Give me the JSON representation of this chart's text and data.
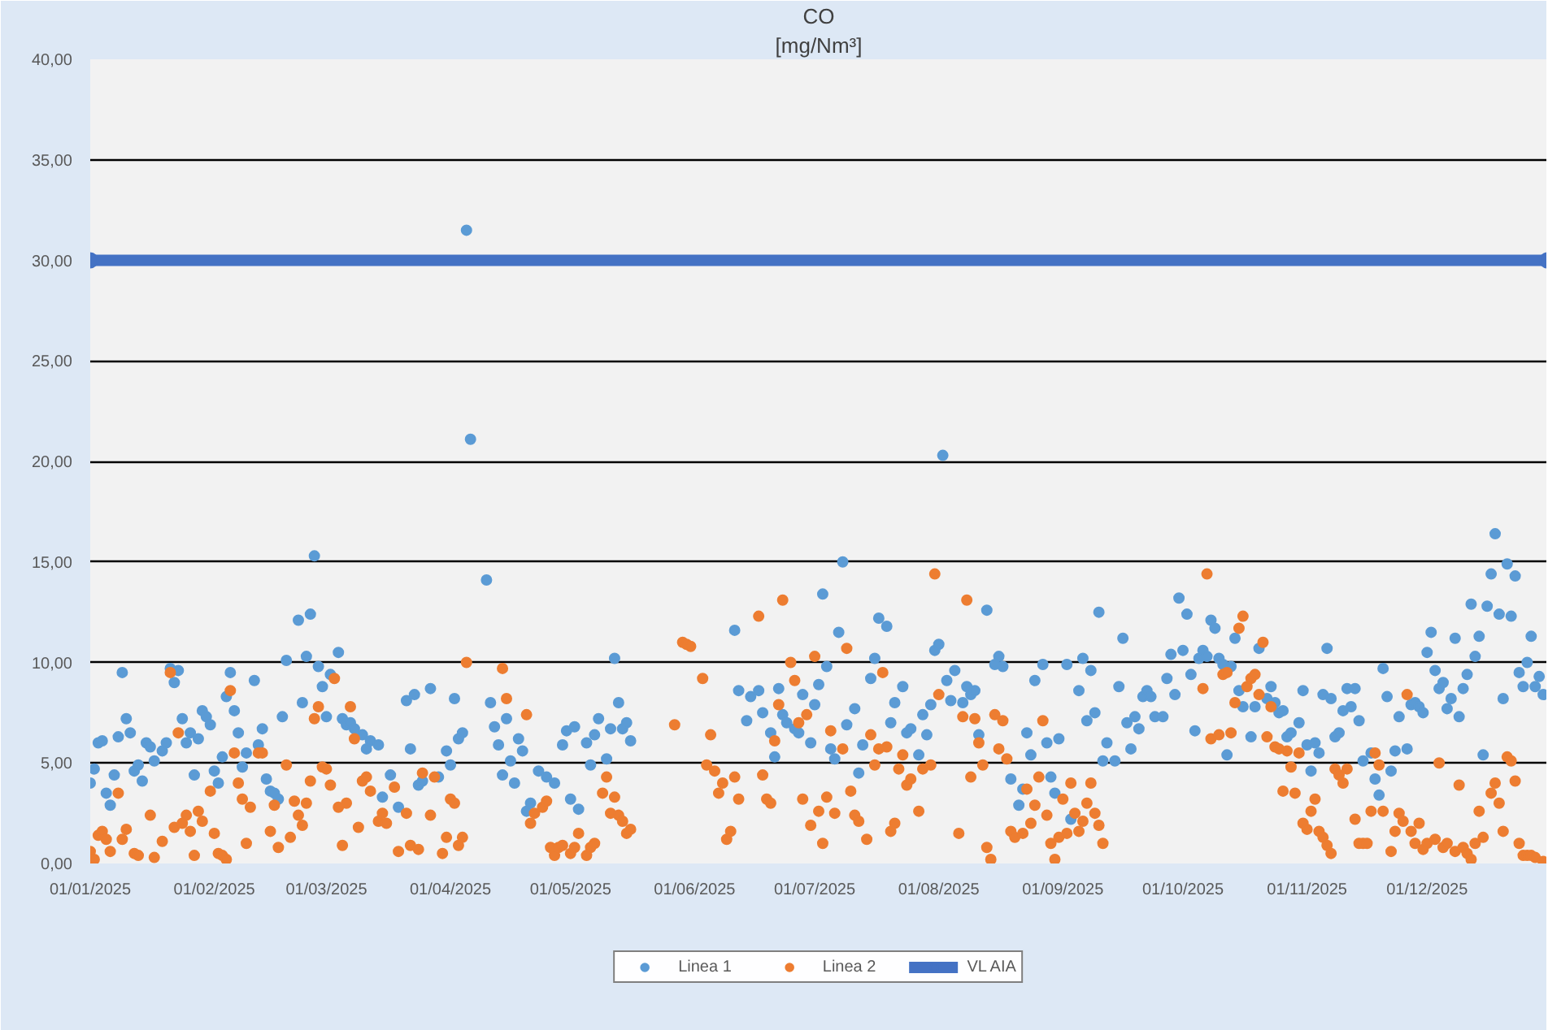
{
  "chart_data": {
    "type": "scatter",
    "title": "CO",
    "subtitle": "[mg/Nm³]",
    "xlim": [
      "2025-01-01",
      "2025-12-31"
    ],
    "xticks": [
      {
        "value": "2025-01-01",
        "label": "01/01/2025"
      },
      {
        "value": "2025-02-01",
        "label": "01/02/2025"
      },
      {
        "value": "2025-03-01",
        "label": "01/03/2025"
      },
      {
        "value": "2025-04-01",
        "label": "01/04/2025"
      },
      {
        "value": "2025-05-01",
        "label": "01/05/2025"
      },
      {
        "value": "2025-06-01",
        "label": "01/06/2025"
      },
      {
        "value": "2025-07-01",
        "label": "01/07/2025"
      },
      {
        "value": "2025-08-01",
        "label": "01/08/2025"
      },
      {
        "value": "2025-09-01",
        "label": "01/09/2025"
      },
      {
        "value": "2025-10-01",
        "label": "01/10/2025"
      },
      {
        "value": "2025-11-01",
        "label": "01/11/2025"
      },
      {
        "value": "2025-12-01",
        "label": "01/12/2025"
      }
    ],
    "ylim": [
      0,
      40
    ],
    "yticks": [
      {
        "value": 0,
        "label": "0,00"
      },
      {
        "value": 5,
        "label": "5,00"
      },
      {
        "value": 10,
        "label": "10,00"
      },
      {
        "value": 15,
        "label": "15,00"
      },
      {
        "value": 20,
        "label": "20,00"
      },
      {
        "value": 25,
        "label": "25,00"
      },
      {
        "value": 30,
        "label": "30,00"
      },
      {
        "value": 35,
        "label": "35,00"
      },
      {
        "value": 40,
        "label": "40,00"
      }
    ],
    "grid": "y",
    "legend": "bottom",
    "marker": "circle",
    "series": [
      {
        "name": "Linea 1",
        "color": "#5b9bd5",
        "x": [
          "2025-01-01",
          "2025-01-02",
          "2025-01-03",
          "2025-01-04",
          "2025-01-05",
          "2025-01-06",
          "2025-01-07",
          "2025-01-08",
          "2025-01-09",
          "2025-01-10",
          "2025-01-11",
          "2025-01-12",
          "2025-01-13",
          "2025-01-14",
          "2025-01-15",
          "2025-01-16",
          "2025-01-17",
          "2025-01-19",
          "2025-01-20",
          "2025-01-21",
          "2025-01-22",
          "2025-01-23",
          "2025-01-24",
          "2025-01-25",
          "2025-01-26",
          "2025-01-27",
          "2025-01-28",
          "2025-01-29",
          "2025-01-30",
          "2025-01-31",
          "2025-02-01",
          "2025-02-02",
          "2025-02-03",
          "2025-02-04",
          "2025-02-05",
          "2025-02-06",
          "2025-02-07",
          "2025-02-08",
          "2025-02-09",
          "2025-02-11",
          "2025-02-12",
          "2025-02-13",
          "2025-02-14",
          "2025-02-15",
          "2025-02-16",
          "2025-02-17",
          "2025-02-18",
          "2025-02-19",
          "2025-02-22",
          "2025-02-23",
          "2025-02-24",
          "2025-02-25",
          "2025-02-26",
          "2025-02-27",
          "2025-02-28",
          "2025-03-01",
          "2025-03-02",
          "2025-03-04",
          "2025-03-05",
          "2025-03-06",
          "2025-03-07",
          "2025-03-08",
          "2025-03-10",
          "2025-03-11",
          "2025-03-12",
          "2025-03-14",
          "2025-03-15",
          "2025-03-17",
          "2025-03-19",
          "2025-03-21",
          "2025-03-22",
          "2025-03-23",
          "2025-03-24",
          "2025-03-25",
          "2025-03-27",
          "2025-03-29",
          "2025-03-31",
          "2025-04-01",
          "2025-04-02",
          "2025-04-03",
          "2025-04-04",
          "2025-04-05",
          "2025-04-06",
          "2025-04-10",
          "2025-04-11",
          "2025-04-12",
          "2025-04-13",
          "2025-04-14",
          "2025-04-15",
          "2025-04-16",
          "2025-04-17",
          "2025-04-18",
          "2025-04-19",
          "2025-04-20",
          "2025-04-21",
          "2025-04-23",
          "2025-04-25",
          "2025-04-27",
          "2025-04-29",
          "2025-04-30",
          "2025-05-01",
          "2025-05-02",
          "2025-05-03",
          "2025-05-05",
          "2025-05-06",
          "2025-05-07",
          "2025-05-08",
          "2025-05-10",
          "2025-05-11",
          "2025-05-12",
          "2025-05-13",
          "2025-05-14",
          "2025-05-15",
          "2025-05-16",
          "2025-06-11",
          "2025-06-12",
          "2025-06-14",
          "2025-06-15",
          "2025-06-17",
          "2025-06-18",
          "2025-06-20",
          "2025-06-21",
          "2025-06-22",
          "2025-06-23",
          "2025-06-24",
          "2025-06-26",
          "2025-06-27",
          "2025-06-28",
          "2025-06-30",
          "2025-07-01",
          "2025-07-02",
          "2025-07-03",
          "2025-07-04",
          "2025-07-05",
          "2025-07-06",
          "2025-07-07",
          "2025-07-08",
          "2025-07-09",
          "2025-07-11",
          "2025-07-12",
          "2025-07-13",
          "2025-07-15",
          "2025-07-16",
          "2025-07-17",
          "2025-07-19",
          "2025-07-20",
          "2025-07-21",
          "2025-07-23",
          "2025-07-24",
          "2025-07-25",
          "2025-07-27",
          "2025-07-28",
          "2025-07-29",
          "2025-07-30",
          "2025-07-31",
          "2025-08-01",
          "2025-08-02",
          "2025-08-03",
          "2025-08-04",
          "2025-08-05",
          "2025-08-07",
          "2025-08-08",
          "2025-08-09",
          "2025-08-10",
          "2025-08-11",
          "2025-08-13",
          "2025-08-15",
          "2025-08-16",
          "2025-08-17",
          "2025-08-19",
          "2025-08-21",
          "2025-08-22",
          "2025-08-23",
          "2025-08-24",
          "2025-08-25",
          "2025-08-27",
          "2025-08-28",
          "2025-08-29",
          "2025-08-30",
          "2025-08-31",
          "2025-09-02",
          "2025-09-03",
          "2025-09-05",
          "2025-09-06",
          "2025-09-07",
          "2025-09-08",
          "2025-09-09",
          "2025-09-10",
          "2025-09-11",
          "2025-09-12",
          "2025-09-14",
          "2025-09-15",
          "2025-09-16",
          "2025-09-17",
          "2025-09-18",
          "2025-09-19",
          "2025-09-20",
          "2025-09-21",
          "2025-09-22",
          "2025-09-23",
          "2025-09-24",
          "2025-09-26",
          "2025-09-27",
          "2025-09-28",
          "2025-09-29",
          "2025-09-30",
          "2025-10-01",
          "2025-10-02",
          "2025-10-03",
          "2025-10-04",
          "2025-10-05",
          "2025-10-06",
          "2025-10-07",
          "2025-10-08",
          "2025-10-09",
          "2025-10-10",
          "2025-10-11",
          "2025-10-12",
          "2025-10-13",
          "2025-10-14",
          "2025-10-15",
          "2025-10-16",
          "2025-10-18",
          "2025-10-19",
          "2025-10-20",
          "2025-10-22",
          "2025-10-23",
          "2025-10-24",
          "2025-10-25",
          "2025-10-26",
          "2025-10-27",
          "2025-10-28",
          "2025-10-30",
          "2025-10-31",
          "2025-11-01",
          "2025-11-02",
          "2025-11-03",
          "2025-11-04",
          "2025-11-05",
          "2025-11-06",
          "2025-11-07",
          "2025-11-08",
          "2025-11-09",
          "2025-11-10",
          "2025-11-11",
          "2025-11-12",
          "2025-11-13",
          "2025-11-14",
          "2025-11-15",
          "2025-11-17",
          "2025-11-18",
          "2025-11-19",
          "2025-11-20",
          "2025-11-21",
          "2025-11-22",
          "2025-11-23",
          "2025-11-24",
          "2025-11-26",
          "2025-11-27",
          "2025-11-28",
          "2025-11-29",
          "2025-11-30",
          "2025-12-01",
          "2025-12-02",
          "2025-12-03",
          "2025-12-04",
          "2025-12-05",
          "2025-12-06",
          "2025-12-07",
          "2025-12-08",
          "2025-12-09",
          "2025-12-10",
          "2025-12-11",
          "2025-12-12",
          "2025-12-13",
          "2025-12-14",
          "2025-12-15",
          "2025-12-16",
          "2025-12-17",
          "2025-12-18",
          "2025-12-19",
          "2025-12-20",
          "2025-12-21",
          "2025-12-22",
          "2025-12-23",
          "2025-12-24",
          "2025-12-25",
          "2025-12-26",
          "2025-12-27",
          "2025-12-28",
          "2025-12-29",
          "2025-12-30"
        ],
        "values": [
          4.0,
          4.7,
          6.0,
          6.1,
          3.5,
          2.9,
          4.4,
          6.3,
          9.5,
          7.2,
          6.5,
          4.6,
          4.9,
          4.1,
          6.0,
          5.8,
          5.1,
          5.6,
          6.0,
          9.7,
          9.0,
          9.6,
          7.2,
          6.0,
          6.5,
          4.4,
          6.2,
          7.6,
          7.3,
          6.9,
          4.6,
          4.0,
          5.3,
          8.3,
          9.5,
          7.6,
          6.5,
          4.8,
          5.5,
          9.1,
          5.9,
          6.7,
          4.2,
          3.6,
          3.5,
          3.2,
          7.3,
          10.1,
          12.1,
          8.0,
          10.3,
          12.4,
          15.3,
          9.8,
          8.8,
          7.3,
          9.4,
          10.5,
          7.2,
          6.9,
          7.0,
          6.7,
          6.4,
          5.7,
          6.1,
          5.9,
          3.3,
          4.4,
          2.8,
          8.1,
          5.7,
          8.4,
          3.9,
          4.1,
          8.7,
          4.3,
          5.6,
          4.9,
          8.2,
          6.2,
          6.5,
          31.5,
          21.1,
          14.1,
          8.0,
          6.8,
          5.9,
          4.4,
          7.2,
          5.1,
          4.0,
          6.2,
          5.6,
          2.6,
          3.0,
          4.6,
          4.3,
          4.0,
          5.9,
          6.6,
          3.2,
          6.8,
          2.7,
          6.0,
          4.9,
          6.4,
          7.2,
          5.2,
          6.7,
          10.2,
          8.0,
          6.7,
          7.0,
          6.1,
          11.6,
          8.6,
          7.1,
          8.3,
          8.6,
          7.5,
          6.5,
          5.3,
          8.7,
          7.4,
          7.0,
          6.7,
          6.5,
          8.4,
          6.0,
          7.9,
          8.9,
          13.4,
          9.8,
          5.7,
          5.2,
          11.5,
          15.0,
          6.9,
          7.7,
          4.5,
          5.9,
          9.2,
          10.2,
          12.2,
          11.8,
          7.0,
          8.0,
          8.8,
          6.5,
          6.7,
          5.4,
          7.4,
          6.4,
          7.9,
          10.6,
          10.9,
          20.3,
          9.1,
          8.1,
          9.6,
          8.0,
          8.8,
          8.4,
          8.6,
          6.4,
          12.6,
          9.9,
          10.3,
          9.8,
          4.2,
          2.9,
          3.7,
          6.5,
          5.4,
          9.1,
          9.9,
          6.0,
          4.3,
          3.5,
          6.2,
          9.9,
          2.2,
          8.6,
          10.2,
          7.1,
          9.6,
          7.5,
          12.5,
          5.1,
          6.0,
          5.1,
          8.8,
          11.2,
          7.0,
          5.7,
          7.3,
          6.7,
          8.3,
          8.6,
          8.3,
          7.3,
          7.3,
          9.2,
          10.4,
          8.4,
          13.2,
          10.6,
          12.4,
          9.4,
          6.6,
          10.2,
          10.6,
          10.3,
          12.1,
          11.7,
          10.2,
          9.9,
          5.4,
          9.8,
          11.2,
          8.6,
          7.8,
          6.3,
          7.8,
          10.7,
          8.2,
          8.8,
          8.0,
          7.5,
          7.6,
          6.3,
          6.5,
          7.0,
          8.6,
          5.9,
          4.6,
          6.0,
          5.5,
          8.4,
          10.7,
          8.2,
          6.3,
          6.5,
          7.6,
          8.7,
          7.8,
          8.7,
          7.1,
          5.1,
          5.5,
          4.2,
          3.4,
          9.7,
          8.3,
          4.6,
          5.6,
          7.3,
          5.7,
          7.9,
          8.0,
          7.8,
          7.5,
          10.5,
          11.5,
          9.6,
          8.7,
          9.0,
          7.7,
          8.2,
          11.2,
          7.3,
          8.7,
          9.4,
          12.9,
          10.3,
          11.3,
          5.4,
          12.8,
          14.4,
          16.4,
          12.4,
          8.2,
          14.9,
          12.3,
          14.3,
          9.5,
          8.8,
          10.0,
          11.3,
          8.8,
          9.3,
          8.4
        ]
      },
      {
        "name": "Linea 2",
        "color": "#ed7d31",
        "x": [
          "2025-01-01",
          "2025-01-02",
          "2025-01-03",
          "2025-01-04",
          "2025-01-05",
          "2025-01-06",
          "2025-01-08",
          "2025-01-09",
          "2025-01-10",
          "2025-01-12",
          "2025-01-13",
          "2025-01-16",
          "2025-01-17",
          "2025-01-19",
          "2025-01-21",
          "2025-01-22",
          "2025-01-23",
          "2025-01-24",
          "2025-01-25",
          "2025-01-26",
          "2025-01-27",
          "2025-01-28",
          "2025-01-29",
          "2025-01-31",
          "2025-02-01",
          "2025-02-02",
          "2025-02-03",
          "2025-02-04",
          "2025-02-05",
          "2025-02-06",
          "2025-02-07",
          "2025-02-08",
          "2025-02-09",
          "2025-02-10",
          "2025-02-12",
          "2025-02-13",
          "2025-02-15",
          "2025-02-16",
          "2025-02-17",
          "2025-02-19",
          "2025-02-20",
          "2025-02-21",
          "2025-02-22",
          "2025-02-23",
          "2025-02-24",
          "2025-02-25",
          "2025-02-26",
          "2025-02-27",
          "2025-02-28",
          "2025-03-01",
          "2025-03-02",
          "2025-03-03",
          "2025-03-04",
          "2025-03-05",
          "2025-03-06",
          "2025-03-07",
          "2025-03-08",
          "2025-03-09",
          "2025-03-10",
          "2025-03-11",
          "2025-03-12",
          "2025-03-14",
          "2025-03-15",
          "2025-03-16",
          "2025-03-18",
          "2025-03-19",
          "2025-03-21",
          "2025-03-22",
          "2025-03-24",
          "2025-03-25",
          "2025-03-27",
          "2025-03-28",
          "2025-03-30",
          "2025-03-31",
          "2025-04-01",
          "2025-04-02",
          "2025-04-03",
          "2025-04-04",
          "2025-04-05",
          "2025-04-14",
          "2025-04-15",
          "2025-04-20",
          "2025-04-21",
          "2025-04-22",
          "2025-04-24",
          "2025-04-25",
          "2025-04-26",
          "2025-04-27",
          "2025-04-28",
          "2025-04-29",
          "2025-05-01",
          "2025-05-02",
          "2025-05-03",
          "2025-05-05",
          "2025-05-06",
          "2025-05-07",
          "2025-05-09",
          "2025-05-10",
          "2025-05-11",
          "2025-05-12",
          "2025-05-13",
          "2025-05-14",
          "2025-05-15",
          "2025-05-16",
          "2025-05-27",
          "2025-05-29",
          "2025-05-30",
          "2025-05-31",
          "2025-06-03",
          "2025-06-04",
          "2025-06-05",
          "2025-06-06",
          "2025-06-07",
          "2025-06-08",
          "2025-06-09",
          "2025-06-10",
          "2025-06-11",
          "2025-06-12",
          "2025-06-17",
          "2025-06-18",
          "2025-06-19",
          "2025-06-20",
          "2025-06-21",
          "2025-06-22",
          "2025-06-23",
          "2025-06-25",
          "2025-06-26",
          "2025-06-27",
          "2025-06-28",
          "2025-06-29",
          "2025-06-30",
          "2025-07-01",
          "2025-07-02",
          "2025-07-03",
          "2025-07-04",
          "2025-07-05",
          "2025-07-06",
          "2025-07-08",
          "2025-07-09",
          "2025-07-10",
          "2025-07-11",
          "2025-07-12",
          "2025-07-14",
          "2025-07-15",
          "2025-07-16",
          "2025-07-17",
          "2025-07-18",
          "2025-07-19",
          "2025-07-20",
          "2025-07-21",
          "2025-07-22",
          "2025-07-23",
          "2025-07-24",
          "2025-07-25",
          "2025-07-27",
          "2025-07-28",
          "2025-07-30",
          "2025-07-31",
          "2025-08-01",
          "2025-08-06",
          "2025-08-07",
          "2025-08-08",
          "2025-08-09",
          "2025-08-10",
          "2025-08-11",
          "2025-08-12",
          "2025-08-13",
          "2025-08-14",
          "2025-08-15",
          "2025-08-16",
          "2025-08-17",
          "2025-08-18",
          "2025-08-19",
          "2025-08-20",
          "2025-08-22",
          "2025-08-23",
          "2025-08-24",
          "2025-08-25",
          "2025-08-26",
          "2025-08-27",
          "2025-08-28",
          "2025-08-29",
          "2025-08-30",
          "2025-08-31",
          "2025-09-01",
          "2025-09-02",
          "2025-09-03",
          "2025-09-04",
          "2025-09-05",
          "2025-09-06",
          "2025-09-07",
          "2025-09-08",
          "2025-09-09",
          "2025-09-10",
          "2025-09-11",
          "2025-10-06",
          "2025-10-07",
          "2025-10-08",
          "2025-10-10",
          "2025-10-11",
          "2025-10-12",
          "2025-10-13",
          "2025-10-14",
          "2025-10-15",
          "2025-10-16",
          "2025-10-17",
          "2025-10-18",
          "2025-10-19",
          "2025-10-20",
          "2025-10-21",
          "2025-10-22",
          "2025-10-23",
          "2025-10-24",
          "2025-10-25",
          "2025-10-26",
          "2025-10-27",
          "2025-10-28",
          "2025-10-29",
          "2025-10-30",
          "2025-10-31",
          "2025-11-01",
          "2025-11-02",
          "2025-11-03",
          "2025-11-04",
          "2025-11-05",
          "2025-11-06",
          "2025-11-07",
          "2025-11-08",
          "2025-11-09",
          "2025-11-10",
          "2025-11-11",
          "2025-11-13",
          "2025-11-14",
          "2025-11-15",
          "2025-11-16",
          "2025-11-17",
          "2025-11-18",
          "2025-11-19",
          "2025-11-20",
          "2025-11-22",
          "2025-11-23",
          "2025-11-24",
          "2025-11-25",
          "2025-11-26",
          "2025-11-27",
          "2025-11-28",
          "2025-11-29",
          "2025-11-30",
          "2025-12-01",
          "2025-12-03",
          "2025-12-04",
          "2025-12-05",
          "2025-12-06",
          "2025-12-08",
          "2025-12-09",
          "2025-12-10",
          "2025-12-11",
          "2025-12-12",
          "2025-12-13",
          "2025-12-14",
          "2025-12-15",
          "2025-12-17",
          "2025-12-18",
          "2025-12-19",
          "2025-12-20",
          "2025-12-21",
          "2025-12-22",
          "2025-12-23",
          "2025-12-24",
          "2025-12-25",
          "2025-12-26",
          "2025-12-27",
          "2025-12-28",
          "2025-12-30"
        ],
        "values": [
          0.6,
          0.2,
          1.4,
          1.6,
          1.2,
          0.6,
          3.5,
          1.2,
          1.7,
          0.5,
          0.4,
          2.4,
          0.3,
          1.1,
          9.5,
          1.8,
          6.5,
          2.0,
          2.4,
          1.6,
          0.4,
          2.6,
          2.1,
          3.6,
          1.5,
          0.5,
          0.4,
          0.2,
          8.6,
          5.5,
          4.0,
          3.2,
          1.0,
          2.8,
          5.5,
          5.5,
          1.6,
          2.9,
          0.8,
          4.9,
          1.3,
          3.1,
          2.4,
          1.9,
          3.0,
          4.1,
          7.2,
          7.8,
          4.8,
          4.7,
          3.9,
          9.2,
          2.8,
          0.9,
          3.0,
          7.8,
          6.2,
          1.8,
          4.1,
          4.3,
          3.6,
          2.1,
          2.5,
          2.0,
          3.8,
          0.6,
          2.5,
          0.9,
          0.7,
          4.5,
          2.4,
          4.3,
          0.5,
          1.3,
          3.2,
          3.0,
          0.9,
          1.3,
          10.0,
          9.7,
          8.2,
          7.4,
          2.0,
          2.5,
          2.8,
          3.1,
          0.8,
          0.4,
          0.8,
          0.9,
          0.5,
          0.8,
          1.5,
          0.4,
          0.8,
          1.0,
          3.5,
          4.3,
          2.5,
          3.3,
          2.4,
          2.1,
          1.5,
          1.7,
          6.9,
          11.0,
          10.9,
          10.8,
          9.2,
          4.9,
          6.4,
          4.6,
          3.5,
          4.0,
          1.2,
          1.6,
          4.3,
          3.2,
          12.3,
          4.4,
          3.2,
          3.0,
          6.1,
          7.9,
          13.1,
          10.0,
          9.1,
          7.0,
          3.2,
          7.4,
          1.9,
          10.3,
          2.6,
          1.0,
          3.3,
          6.6,
          2.5,
          5.7,
          10.7,
          3.6,
          2.4,
          2.1,
          1.2,
          6.4,
          4.9,
          5.7,
          9.5,
          5.8,
          1.6,
          2.0,
          4.7,
          5.4,
          3.9,
          4.2,
          2.6,
          4.7,
          4.9,
          14.4,
          8.4,
          1.5,
          7.3,
          13.1,
          4.3,
          7.2,
          6.0,
          4.9,
          0.8,
          0.2,
          7.4,
          5.7,
          7.1,
          5.2,
          1.6,
          1.3,
          1.5,
          3.7,
          2.0,
          2.9,
          4.3,
          7.1,
          2.4,
          1.0,
          0.2,
          1.3,
          3.2,
          1.5,
          4.0,
          2.5,
          1.6,
          2.1,
          3.0,
          4.0,
          2.5,
          1.9,
          1.0,
          8.7,
          14.4,
          6.2,
          6.4,
          9.4,
          9.5,
          6.5,
          8.0,
          11.7,
          12.3,
          8.8,
          9.2,
          9.4,
          8.4,
          11.0,
          6.3,
          7.8,
          5.8,
          5.7,
          3.6,
          5.6,
          4.8,
          3.5,
          5.5,
          2.0,
          1.7,
          2.6,
          3.2,
          1.6,
          1.3,
          0.9,
          0.5,
          4.7,
          4.4,
          4.0,
          4.7,
          2.2,
          1.0,
          1.0,
          1.0,
          2.6,
          5.5,
          4.9,
          2.6,
          0.6,
          1.6,
          2.5,
          2.1,
          8.4,
          1.6,
          1.0,
          2.0,
          0.7,
          1.0,
          1.2,
          5.0,
          0.8,
          1.0,
          0.6,
          3.9,
          0.8,
          0.5,
          0.2,
          1.0,
          2.6,
          1.3,
          3.5,
          4.0,
          3.0,
          1.6,
          5.3,
          5.1,
          4.1,
          1.0,
          0.4,
          0.4,
          0.4,
          0.3,
          0.1
        ]
      },
      {
        "name": "VL AIA",
        "type": "line",
        "color": "#4472c4",
        "x": [
          "2025-01-01",
          "2025-12-31"
        ],
        "values": [
          30,
          30
        ]
      }
    ]
  }
}
